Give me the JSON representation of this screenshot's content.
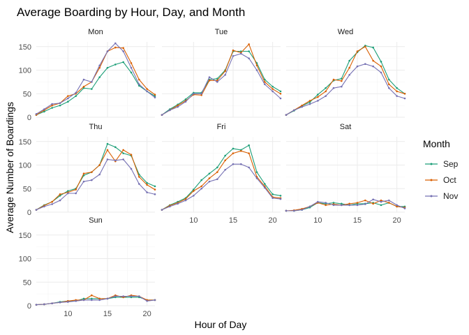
{
  "chart_data": {
    "type": "line",
    "title": "Average Boarding by Hour, Day, and Month",
    "xlabel": "Hour of Day",
    "ylabel": "Average Number of Boardings",
    "xlim": [
      6,
      21
    ],
    "ylim": [
      0,
      160
    ],
    "x_ticks": [
      10,
      15,
      20
    ],
    "y_ticks": [
      0,
      50,
      100,
      150
    ],
    "legend": {
      "title": "Month",
      "position": "right",
      "entries": [
        "Sep",
        "Oct",
        "Nov"
      ]
    },
    "series_colors": {
      "Sep": "#1b9e77",
      "Oct": "#d95f02",
      "Nov": "#7570b3"
    },
    "x": [
      6,
      7,
      8,
      9,
      10,
      11,
      12,
      13,
      14,
      15,
      16,
      17,
      18,
      19,
      20,
      21
    ],
    "panels": [
      {
        "label": "Mon",
        "series": [
          {
            "name": "Sep",
            "values": [
              5,
              12,
              20,
              25,
              33,
              45,
              62,
              60,
              85,
              105,
              112,
              117,
              95,
              67,
              55,
              45
            ]
          },
          {
            "name": "Oct",
            "values": [
              5,
              15,
              25,
              30,
              45,
              50,
              65,
              75,
              105,
              140,
              148,
              147,
              115,
              80,
              60,
              48
            ]
          },
          {
            "name": "Nov",
            "values": [
              7,
              17,
              28,
              30,
              40,
              52,
              80,
              75,
              110,
              140,
              157,
              140,
              105,
              70,
              55,
              42
            ]
          }
        ]
      },
      {
        "label": "Tue",
        "series": [
          {
            "name": "Sep",
            "values": [
              5,
              17,
              27,
              38,
              52,
              52,
              80,
              82,
              100,
              140,
              140,
              140,
              115,
              80,
              65,
              55
            ]
          },
          {
            "name": "Oct",
            "values": [
              5,
              15,
              25,
              35,
              48,
              47,
              78,
              78,
              98,
              142,
              137,
              155,
              110,
              75,
              60,
              50
            ]
          },
          {
            "name": "Nov",
            "values": [
              5,
              15,
              22,
              33,
              50,
              50,
              85,
              75,
              90,
              130,
              135,
              125,
              100,
              70,
              55,
              40
            ]
          }
        ]
      },
      {
        "label": "Wed",
        "series": [
          {
            "name": "Sep",
            "values": [
              5,
              14,
              24,
              32,
              48,
              62,
              78,
              82,
              120,
              138,
              152,
              148,
              118,
              80,
              62,
              50
            ]
          },
          {
            "name": "Oct",
            "values": [
              5,
              15,
              25,
              35,
              43,
              55,
              80,
              77,
              105,
              140,
              150,
              120,
              108,
              70,
              55,
              50
            ]
          },
          {
            "name": "Nov",
            "values": [
              5,
              15,
              22,
              28,
              35,
              45,
              62,
              65,
              90,
              108,
              113,
              108,
              95,
              62,
              45,
              40
            ]
          }
        ]
      },
      {
        "label": "Thu",
        "series": [
          {
            "name": "Sep",
            "values": [
              5,
              15,
              22,
              35,
              45,
              50,
              78,
              85,
              100,
              145,
              138,
              125,
              120,
              80,
              62,
              55
            ]
          },
          {
            "name": "Oct",
            "values": [
              5,
              14,
              22,
              38,
              42,
              48,
              82,
              85,
              100,
              132,
              108,
              132,
              122,
              75,
              58,
              48
            ]
          },
          {
            "name": "Nov",
            "values": [
              5,
              12,
              17,
              25,
              40,
              40,
              65,
              68,
              80,
              112,
              110,
              112,
              92,
              60,
              42,
              38
            ]
          }
        ]
      },
      {
        "label": "Fri",
        "series": [
          {
            "name": "Sep",
            "values": [
              5,
              15,
              22,
              30,
              48,
              68,
              82,
              95,
              120,
              135,
              132,
              142,
              85,
              60,
              38,
              35
            ]
          },
          {
            "name": "Oct",
            "values": [
              5,
              14,
              20,
              28,
              45,
              55,
              72,
              85,
              110,
              125,
              130,
              125,
              75,
              55,
              32,
              30
            ]
          },
          {
            "name": "Nov",
            "values": [
              5,
              12,
              18,
              25,
              35,
              50,
              65,
              70,
              90,
              102,
              102,
              95,
              72,
              52,
              30,
              28
            ]
          }
        ]
      },
      {
        "label": "Sat",
        "series": [
          {
            "name": "Sep",
            "values": [
              3,
              3,
              5,
              10,
              20,
              18,
              20,
              18,
              15,
              18,
              18,
              20,
              15,
              20,
              12,
              12
            ]
          },
          {
            "name": "Oct",
            "values": [
              3,
              4,
              7,
              12,
              20,
              15,
              17,
              15,
              18,
              20,
              25,
              18,
              25,
              20,
              12,
              10
            ]
          },
          {
            "name": "Nov",
            "values": [
              3,
              3,
              5,
              12,
              22,
              20,
              15,
              15,
              15,
              15,
              17,
              27,
              22,
              25,
              15,
              8
            ]
          }
        ]
      },
      {
        "label": "Sun",
        "series": [
          {
            "name": "Sep",
            "values": [
              2,
              3,
              5,
              8,
              10,
              10,
              15,
              15,
              15,
              15,
              18,
              18,
              18,
              18,
              12,
              12
            ]
          },
          {
            "name": "Oct",
            "values": [
              2,
              3,
              5,
              7,
              10,
              12,
              12,
              22,
              15,
              15,
              22,
              18,
              22,
              20,
              12,
              12
            ]
          },
          {
            "name": "Nov",
            "values": [
              2,
              3,
              5,
              7,
              8,
              10,
              12,
              12,
              12,
              15,
              20,
              20,
              20,
              20,
              10,
              12
            ]
          }
        ]
      }
    ]
  }
}
